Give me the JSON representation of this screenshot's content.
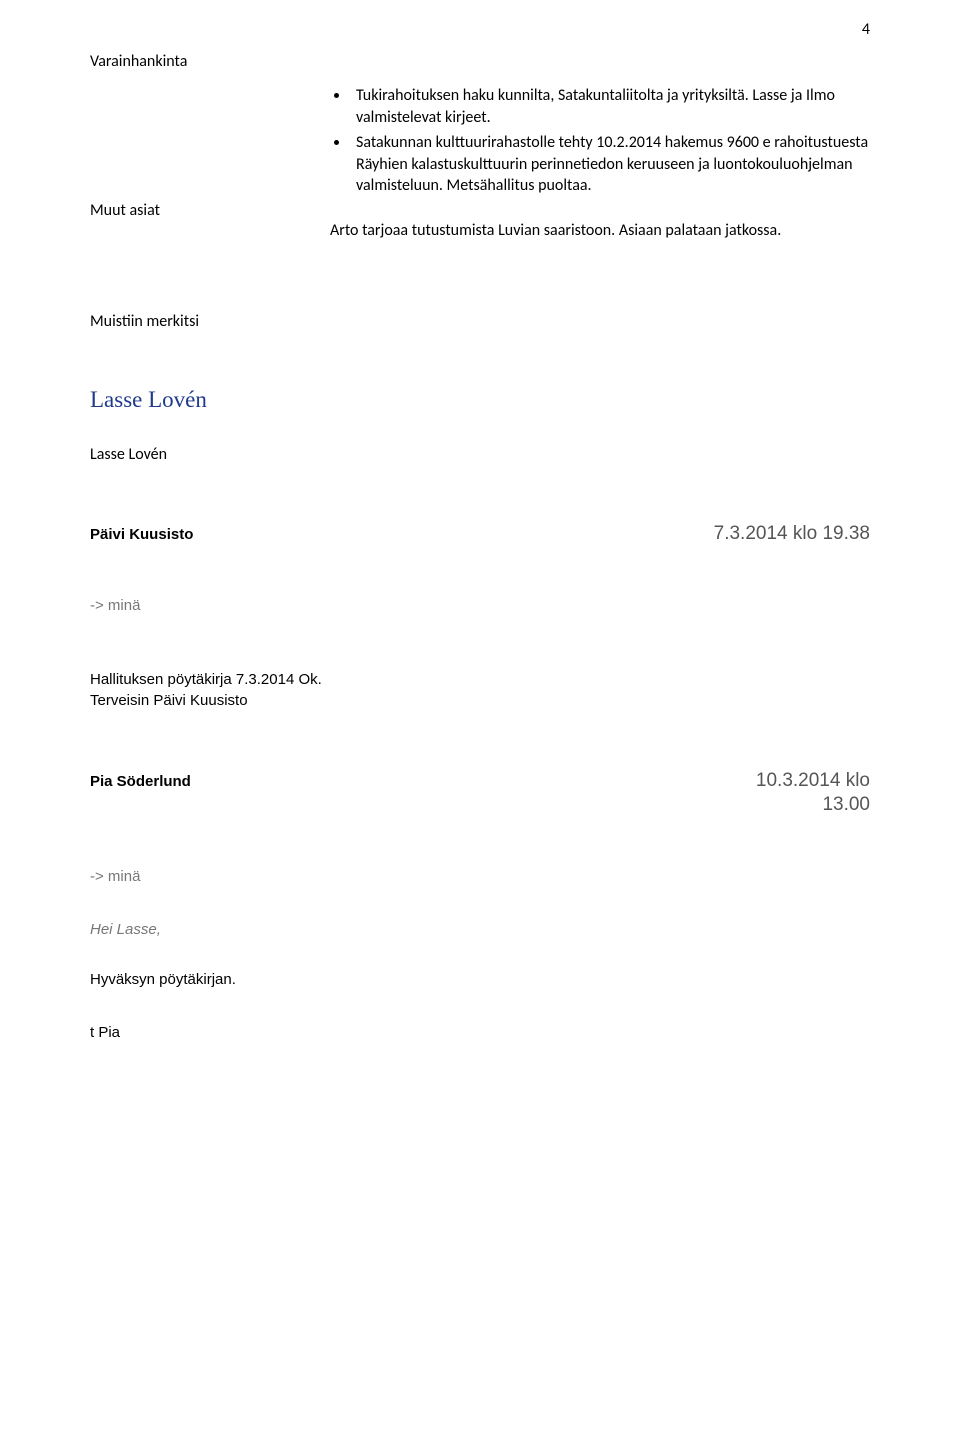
{
  "pageNumber": "4",
  "headings": {
    "fundraising": "Varainhankinta",
    "otherMatters": "Muut asiat"
  },
  "bullets": [
    "Tukirahoituksen haku kunnilta, Satakuntaliitolta ja yrityksiltä. Lasse ja Ilmo valmistelevat kirjeet.",
    "Satakunnan kulttuurirahastolle tehty 10.2.2014 hakemus 9600 e rahoitustuesta Räyhien kalastuskulttuurin perinnetiedon keruuseen ja luontokouluohjelman valmisteluun. Metsähallitus puoltaa."
  ],
  "otherMattersText": "Arto tarjoaa tutustumista Luvian saaristoon. Asiaan palataan jatkossa.",
  "notedBy": "Muistiin merkitsi",
  "signatureCursive": "Lasse Lovén",
  "signaturePlain": "Lasse Lovén",
  "emails": [
    {
      "from": "Päivi Kuusisto",
      "date": "7.3.2014  klo 19.38",
      "recipientLine": "-> minä",
      "bodyLines": [
        "Hallituksen pöytäkirja 7.3.2014 Ok.",
        "Terveisin Päivi Kuusisto"
      ]
    },
    {
      "from": "Pia Söderlund",
      "date": "10.3.2014 klo\n13.00",
      "recipientLine": "-> minä",
      "intro": "Hei Lasse,",
      "body": "Hyväksyn pöytäkirjan.",
      "sign": "t Pia"
    }
  ]
}
